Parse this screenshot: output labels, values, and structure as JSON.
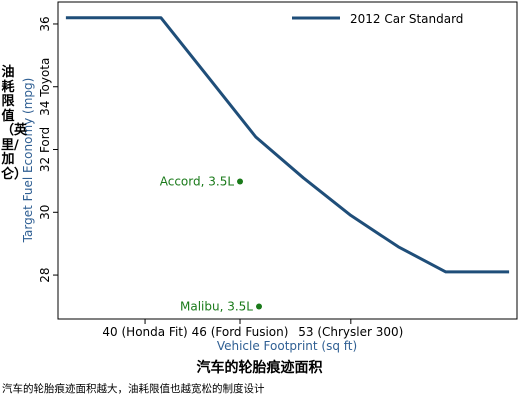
{
  "chart_data": {
    "type": "line",
    "title": "汽车的轮胎痕迹面积",
    "caption": "汽车的轮胎痕迹面积越大，油耗限值也越宽松的制度设计",
    "xlabel": "Vehicle Footprint (sq ft)",
    "ylabel": "Target Fuel Economy (mpg)",
    "ylabel_cn": "油耗限值（英里/加仑）",
    "xlim": [
      34.5,
      63.5
    ],
    "ylim": [
      26.6,
      36.7
    ],
    "x_ticks": [
      {
        "value": 40,
        "label": "40 (Honda Fit)"
      },
      {
        "value": 46,
        "label": "46 (Ford Fusion)"
      },
      {
        "value": 53,
        "label": "53 (Chrysler 300)"
      }
    ],
    "y_ticks": [
      {
        "value": 28,
        "label": "28"
      },
      {
        "value": 30,
        "label": "30"
      },
      {
        "value": 32,
        "label": "32 Ford"
      },
      {
        "value": 34,
        "label": "34 Toyota"
      },
      {
        "value": 36,
        "label": "36"
      }
    ],
    "series": [
      {
        "name": "2012 Car Standard",
        "color": "#1f4e79",
        "x": [
          35,
          41,
          44,
          47,
          50,
          53,
          56,
          59,
          63
        ],
        "y": [
          36.2,
          36.2,
          34.3,
          32.4,
          31.1,
          29.9,
          28.9,
          28.1,
          28.1
        ]
      }
    ],
    "points": [
      {
        "label": "Accord, 3.5L",
        "x": 46,
        "y": 30.98,
        "color": "#1a7a1a"
      },
      {
        "label": "Malibu, 3.5L",
        "x": 47.2,
        "y": 27.0,
        "color": "#1a7a1a"
      }
    ],
    "grid": false,
    "legend": {
      "placement": "top-right"
    }
  }
}
